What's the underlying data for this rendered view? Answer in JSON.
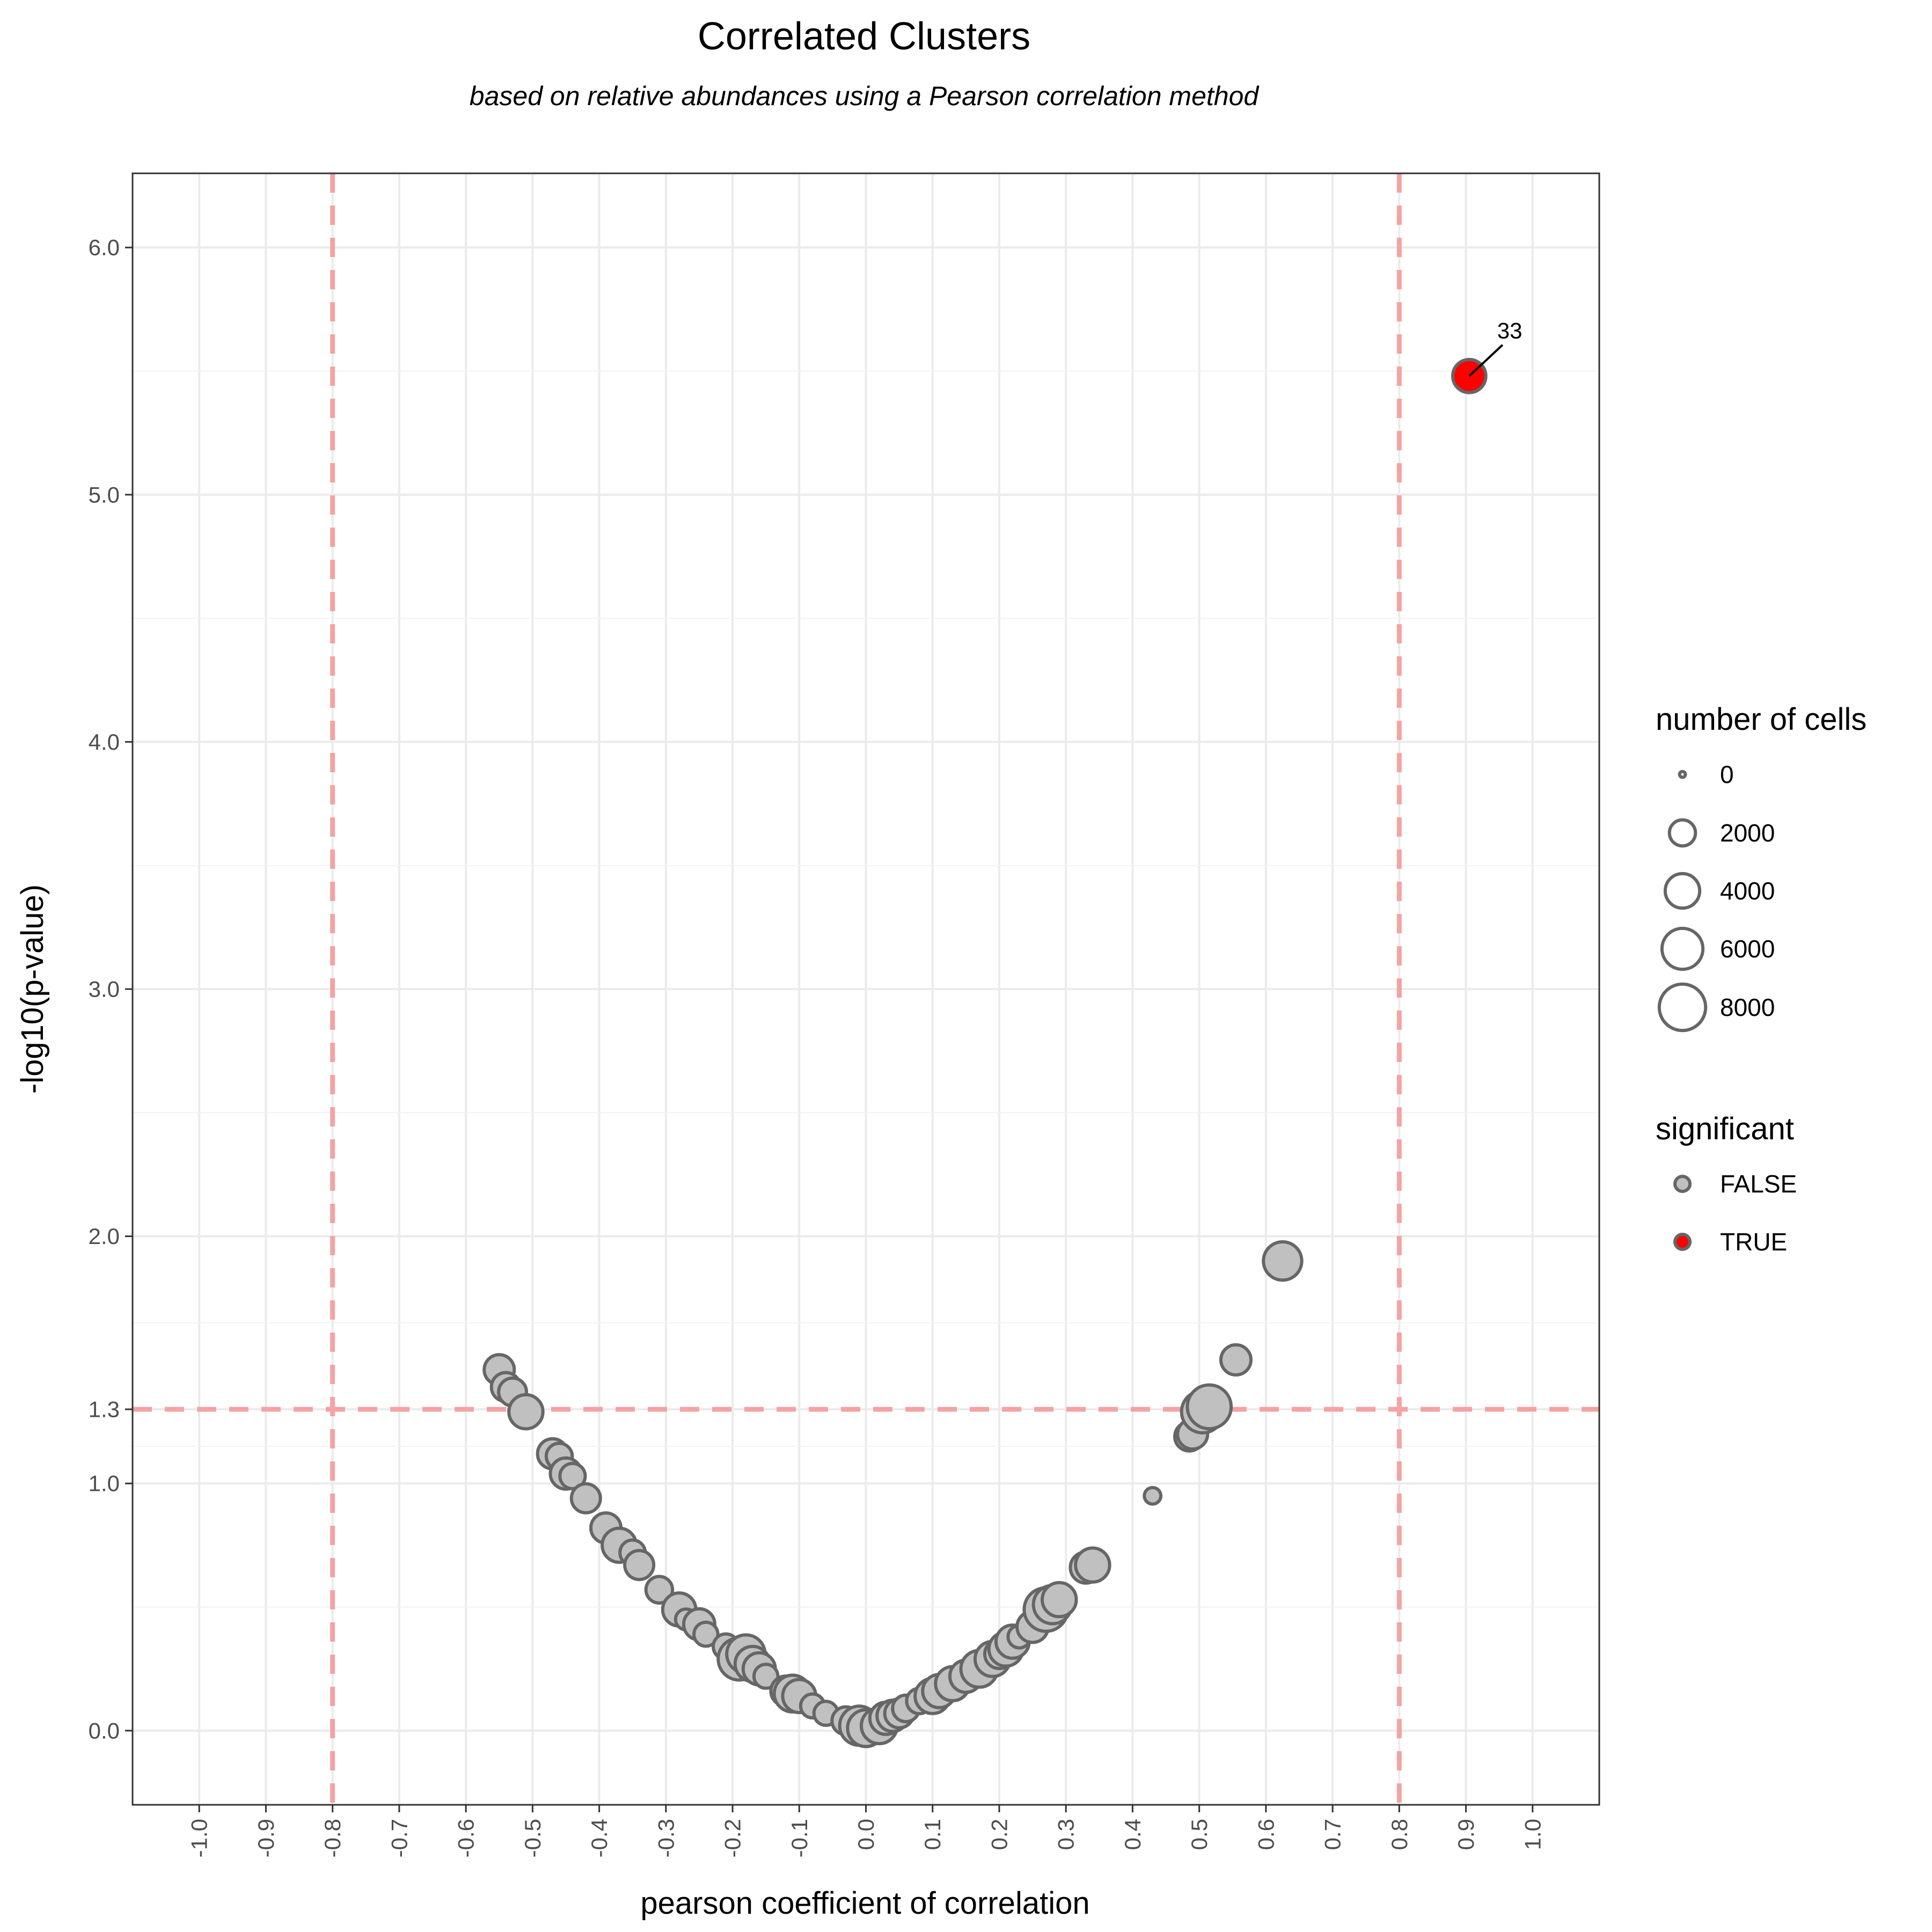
{
  "chart_data": {
    "type": "scatter",
    "title": "Correlated Clusters",
    "subtitle": "based on relative abundances using a Pearson correlation method",
    "xlabel": "pearson coefficient of correlation",
    "ylabel": "-log10(p-value)",
    "xlim": [
      -1.1,
      1.1
    ],
    "ylim": [
      -0.3,
      6.3
    ],
    "x_ticks": [
      "-1.0",
      "-0.9",
      "-0.8",
      "-0.7",
      "-0.6",
      "-0.5",
      "-0.4",
      "-0.3",
      "-0.2",
      "-0.1",
      "0.0",
      "0.1",
      "0.2",
      "0.3",
      "0.4",
      "0.5",
      "0.6",
      "0.7",
      "0.8",
      "0.9",
      "1.0"
    ],
    "y_ticks": [
      "0.0",
      "1.0",
      "1.3",
      "2.0",
      "3.0",
      "4.0",
      "5.0",
      "6.0"
    ],
    "grid": true,
    "reference_lines": {
      "x": [
        -0.8,
        0.8
      ],
      "y": [
        1.3
      ],
      "color": "#f4a3a3"
    },
    "colors": {
      "FALSE": "#c0c0c0",
      "TRUE": "#ff0000",
      "outline": "#666666"
    },
    "size_legend": {
      "title": "number of cells",
      "labels": [
        "0",
        "2000",
        "4000",
        "6000",
        "8000"
      ],
      "values": [
        0,
        2000,
        4000,
        6000,
        8000
      ]
    },
    "color_legend": {
      "title": "significant",
      "labels": [
        "FALSE",
        "TRUE"
      ]
    },
    "points": [
      {
        "x": -0.55,
        "y": 1.46,
        "cells": 2200,
        "sig": false
      },
      {
        "x": -0.54,
        "y": 1.39,
        "cells": 2000,
        "sig": false
      },
      {
        "x": -0.53,
        "y": 1.37,
        "cells": 1800,
        "sig": false
      },
      {
        "x": -0.51,
        "y": 1.29,
        "cells": 3000,
        "sig": false
      },
      {
        "x": -0.47,
        "y": 1.12,
        "cells": 2200,
        "sig": false
      },
      {
        "x": -0.46,
        "y": 1.11,
        "cells": 1500,
        "sig": false
      },
      {
        "x": -0.45,
        "y": 1.04,
        "cells": 2400,
        "sig": false
      },
      {
        "x": -0.44,
        "y": 1.03,
        "cells": 1400,
        "sig": false
      },
      {
        "x": -0.42,
        "y": 0.94,
        "cells": 2000,
        "sig": false
      },
      {
        "x": -0.39,
        "y": 0.82,
        "cells": 2200,
        "sig": false
      },
      {
        "x": -0.37,
        "y": 0.75,
        "cells": 3000,
        "sig": false
      },
      {
        "x": -0.35,
        "y": 0.72,
        "cells": 1400,
        "sig": false
      },
      {
        "x": -0.34,
        "y": 0.67,
        "cells": 2000,
        "sig": false
      },
      {
        "x": -0.31,
        "y": 0.57,
        "cells": 1600,
        "sig": false
      },
      {
        "x": -0.28,
        "y": 0.49,
        "cells": 2800,
        "sig": false
      },
      {
        "x": -0.27,
        "y": 0.45,
        "cells": 800,
        "sig": false
      },
      {
        "x": -0.25,
        "y": 0.43,
        "cells": 2400,
        "sig": false
      },
      {
        "x": -0.24,
        "y": 0.39,
        "cells": 1200,
        "sig": false
      },
      {
        "x": -0.21,
        "y": 0.34,
        "cells": 1400,
        "sig": false
      },
      {
        "x": -0.19,
        "y": 0.29,
        "cells": 5000,
        "sig": false
      },
      {
        "x": -0.18,
        "y": 0.31,
        "cells": 4000,
        "sig": false
      },
      {
        "x": -0.17,
        "y": 0.27,
        "cells": 3200,
        "sig": false
      },
      {
        "x": -0.16,
        "y": 0.25,
        "cells": 2600,
        "sig": false
      },
      {
        "x": -0.15,
        "y": 0.22,
        "cells": 1200,
        "sig": false
      },
      {
        "x": -0.12,
        "y": 0.16,
        "cells": 2200,
        "sig": false
      },
      {
        "x": -0.11,
        "y": 0.15,
        "cells": 3600,
        "sig": false
      },
      {
        "x": -0.1,
        "y": 0.14,
        "cells": 2800,
        "sig": false
      },
      {
        "x": -0.08,
        "y": 0.1,
        "cells": 1200,
        "sig": false
      },
      {
        "x": -0.06,
        "y": 0.07,
        "cells": 1200,
        "sig": false
      },
      {
        "x": -0.03,
        "y": 0.04,
        "cells": 1800,
        "sig": false
      },
      {
        "x": -0.01,
        "y": 0.02,
        "cells": 4200,
        "sig": false
      },
      {
        "x": 0.0,
        "y": 0.01,
        "cells": 3600,
        "sig": false
      },
      {
        "x": 0.02,
        "y": 0.02,
        "cells": 3400,
        "sig": false
      },
      {
        "x": 0.03,
        "y": 0.05,
        "cells": 2600,
        "sig": false
      },
      {
        "x": 0.04,
        "y": 0.06,
        "cells": 2400,
        "sig": false
      },
      {
        "x": 0.05,
        "y": 0.07,
        "cells": 2000,
        "sig": false
      },
      {
        "x": 0.06,
        "y": 0.09,
        "cells": 1600,
        "sig": false
      },
      {
        "x": 0.08,
        "y": 0.12,
        "cells": 1400,
        "sig": false
      },
      {
        "x": 0.1,
        "y": 0.14,
        "cells": 3200,
        "sig": false
      },
      {
        "x": 0.11,
        "y": 0.16,
        "cells": 2800,
        "sig": false
      },
      {
        "x": 0.13,
        "y": 0.19,
        "cells": 3000,
        "sig": false
      },
      {
        "x": 0.15,
        "y": 0.22,
        "cells": 2600,
        "sig": false
      },
      {
        "x": 0.17,
        "y": 0.25,
        "cells": 3600,
        "sig": false
      },
      {
        "x": 0.19,
        "y": 0.29,
        "cells": 3200,
        "sig": false
      },
      {
        "x": 0.2,
        "y": 0.31,
        "cells": 2000,
        "sig": false
      },
      {
        "x": 0.21,
        "y": 0.33,
        "cells": 3000,
        "sig": false
      },
      {
        "x": 0.22,
        "y": 0.36,
        "cells": 2800,
        "sig": false
      },
      {
        "x": 0.23,
        "y": 0.38,
        "cells": 1000,
        "sig": false
      },
      {
        "x": 0.25,
        "y": 0.42,
        "cells": 2400,
        "sig": false
      },
      {
        "x": 0.27,
        "y": 0.49,
        "cells": 5400,
        "sig": false
      },
      {
        "x": 0.28,
        "y": 0.51,
        "cells": 4000,
        "sig": false
      },
      {
        "x": 0.29,
        "y": 0.53,
        "cells": 3000,
        "sig": false
      },
      {
        "x": 0.33,
        "y": 0.66,
        "cells": 2400,
        "sig": false
      },
      {
        "x": 0.34,
        "y": 0.67,
        "cells": 3000,
        "sig": false
      },
      {
        "x": 0.43,
        "y": 0.95,
        "cells": 400,
        "sig": false
      },
      {
        "x": 0.485,
        "y": 1.19,
        "cells": 2000,
        "sig": false
      },
      {
        "x": 0.49,
        "y": 1.2,
        "cells": 2200,
        "sig": false
      },
      {
        "x": 0.505,
        "y": 1.29,
        "cells": 5000,
        "sig": false
      },
      {
        "x": 0.515,
        "y": 1.31,
        "cells": 5500,
        "sig": false
      },
      {
        "x": 0.555,
        "y": 1.5,
        "cells": 2200,
        "sig": false
      },
      {
        "x": 0.625,
        "y": 1.9,
        "cells": 4000,
        "sig": false
      },
      {
        "x": 0.905,
        "y": 5.48,
        "cells": 2800,
        "sig": true,
        "label": "33"
      }
    ]
  }
}
